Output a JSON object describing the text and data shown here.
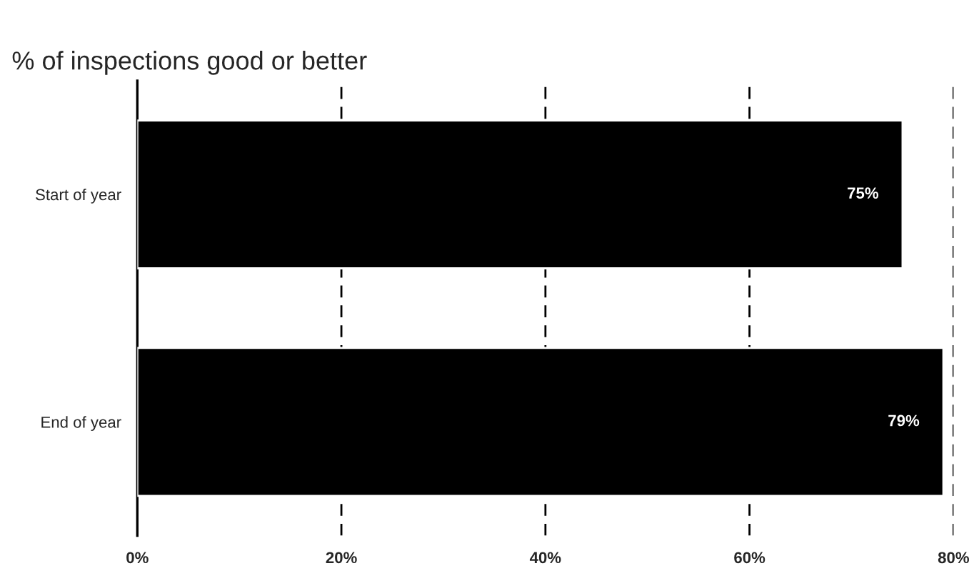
{
  "chart_data": {
    "type": "bar",
    "orientation": "horizontal",
    "title": "% of inspections good or better",
    "categories": [
      "Start of year",
      "End of year"
    ],
    "series": [
      {
        "color": "#000000",
        "values": [
          75,
          79
        ],
        "value_labels": [
          "75%",
          "79%"
        ]
      }
    ],
    "xlim": [
      0,
      80
    ],
    "xticks": [
      {
        "value": 0,
        "label": "0%"
      },
      {
        "value": 20,
        "label": "20%"
      },
      {
        "value": 40,
        "label": "40%"
      },
      {
        "value": 60,
        "label": "60%"
      },
      {
        "value": 80,
        "label": "80%"
      }
    ],
    "grid": "x",
    "line_style": "dashed"
  }
}
